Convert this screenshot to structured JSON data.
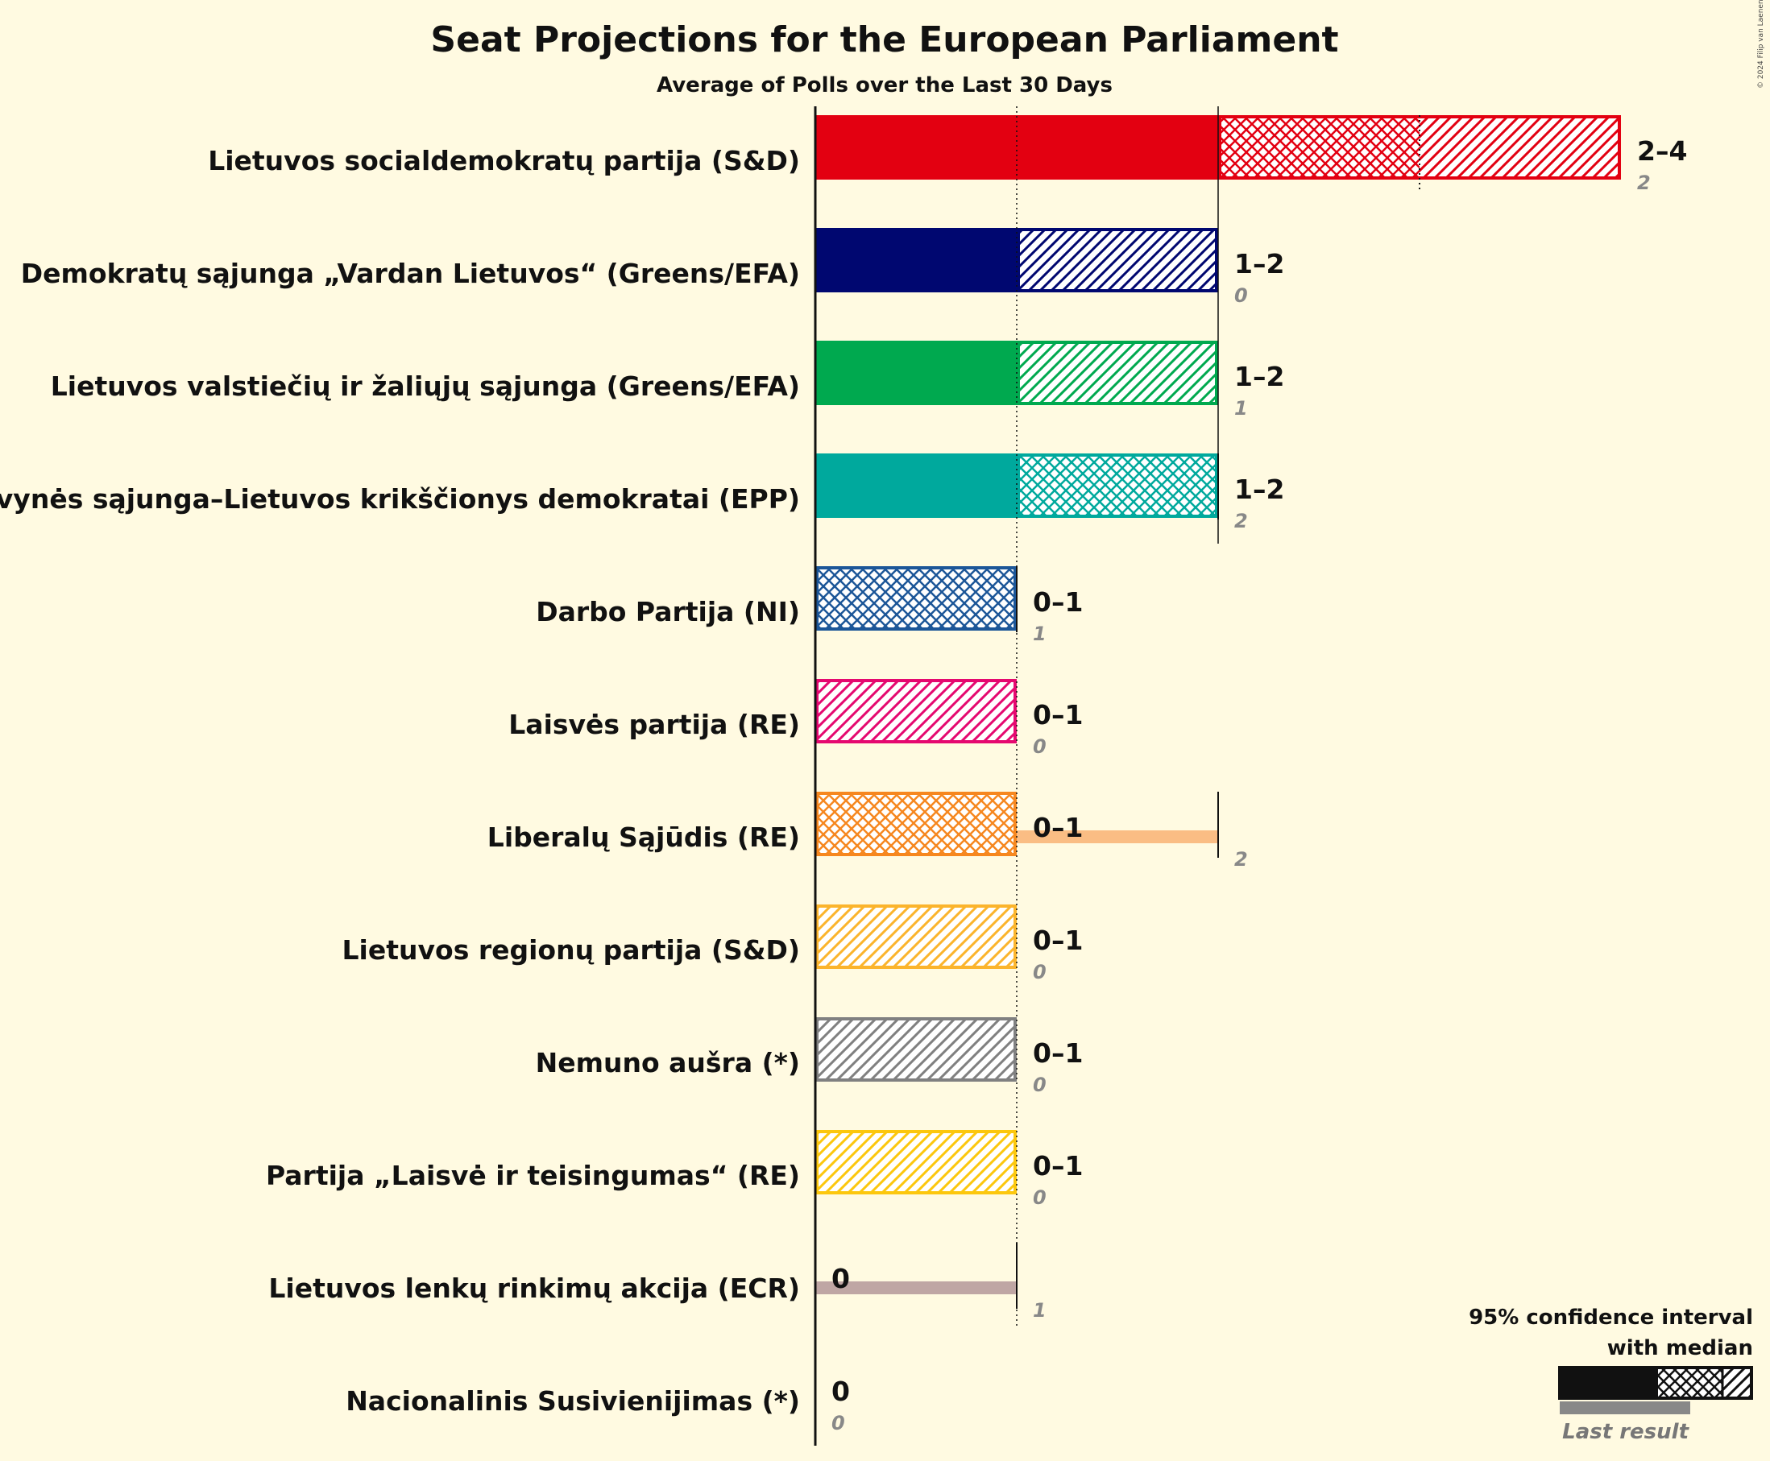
{
  "chart_data": {
    "type": "bar",
    "title": "Seat Projections for the European Parliament",
    "subtitle": "Average of Polls over the Last 30 Days",
    "xlim": [
      0,
      4
    ],
    "series": [
      {
        "party": "Lietuvos socialdemokratų partija (S&D)",
        "color": "#e30011",
        "low": 2,
        "median": 3,
        "high": 4,
        "range_label": "2–4",
        "last_result": 2,
        "last_label": "2",
        "inner_pattern": "cross",
        "outer_pattern": "hatch"
      },
      {
        "party": "Demokratų sąjunga „Vardan Lietuvos“ (Greens/EFA)",
        "color": "#000770",
        "low": 1,
        "median": 1,
        "high": 2,
        "range_label": "1–2",
        "last_result": 0,
        "last_label": "0",
        "inner_pattern": "hatch",
        "outer_pattern": "hatch"
      },
      {
        "party": "Lietuvos valstiečių ir žaliųjų sąjunga (Greens/EFA)",
        "color": "#00a94f",
        "low": 1,
        "median": 1,
        "high": 2,
        "range_label": "1–2",
        "last_result": 1,
        "last_label": "1",
        "inner_pattern": "hatch",
        "outer_pattern": "hatch"
      },
      {
        "party": "Tėvynės sąjunga–Lietuvos krikščionys demokratai (EPP)",
        "color": "#00a99d",
        "low": 1,
        "median": 2,
        "high": 2,
        "range_label": "1–2",
        "last_result": 2,
        "last_label": "2",
        "inner_pattern": "cross",
        "outer_pattern": "cross"
      },
      {
        "party": "Darbo Partija (NI)",
        "color": "#1c5698",
        "low": 0,
        "median": 1,
        "high": 1,
        "range_label": "0–1",
        "last_result": 1,
        "last_label": "1",
        "inner_pattern": "cross",
        "outer_pattern": "cross"
      },
      {
        "party": "Laisvės partija (RE)",
        "color": "#e5086f",
        "low": 0,
        "median": 0,
        "high": 1,
        "range_label": "0–1",
        "last_result": 0,
        "last_label": "0",
        "inner_pattern": "hatch",
        "outer_pattern": "hatch"
      },
      {
        "party": "Liberalų Sąjūdis (RE)",
        "color": "#f6871f",
        "low": 0,
        "median": 1,
        "high": 1,
        "range_label": "0–1",
        "last_result": 2,
        "last_label": "2",
        "inner_pattern": "cross",
        "outer_pattern": "cross"
      },
      {
        "party": "Lietuvos regionų partija (S&D)",
        "color": "#fbb42c",
        "low": 0,
        "median": 0,
        "high": 1,
        "range_label": "0–1",
        "last_result": 0,
        "last_label": "0",
        "inner_pattern": "hatch",
        "outer_pattern": "hatch"
      },
      {
        "party": "Nemuno aušra (*)",
        "color": "#808080",
        "low": 0,
        "median": 0,
        "high": 1,
        "range_label": "0–1",
        "last_result": 0,
        "last_label": "0",
        "inner_pattern": "hatch",
        "outer_pattern": "hatch"
      },
      {
        "party": "Partija „Laisvė ir teisingumas“ (RE)",
        "color": "#fcc70d",
        "low": 0,
        "median": 0,
        "high": 1,
        "range_label": "0–1",
        "last_result": 0,
        "last_label": "0",
        "inner_pattern": "hatch",
        "outer_pattern": "hatch"
      },
      {
        "party": "Lietuvos lenkų rinkimų akcija (ECR)",
        "color": "#8b5e5a",
        "low": 0,
        "median": 0,
        "high": 0,
        "range_label": "0",
        "last_result": 1,
        "last_label": "1",
        "inner_pattern": "none",
        "outer_pattern": "none"
      },
      {
        "party": "Nacionalinis Susivienijimas (*)",
        "color": "#333333",
        "low": 0,
        "median": 0,
        "high": 0,
        "range_label": "0",
        "last_result": 0,
        "last_label": "0",
        "inner_pattern": "none",
        "outer_pattern": "none"
      }
    ],
    "legend": {
      "line1": "95% confidence interval",
      "line2": "with median",
      "last_result_label": "Last result",
      "placement": "bottom-right"
    },
    "copyright": "© 2024 Filip van Laenen"
  }
}
